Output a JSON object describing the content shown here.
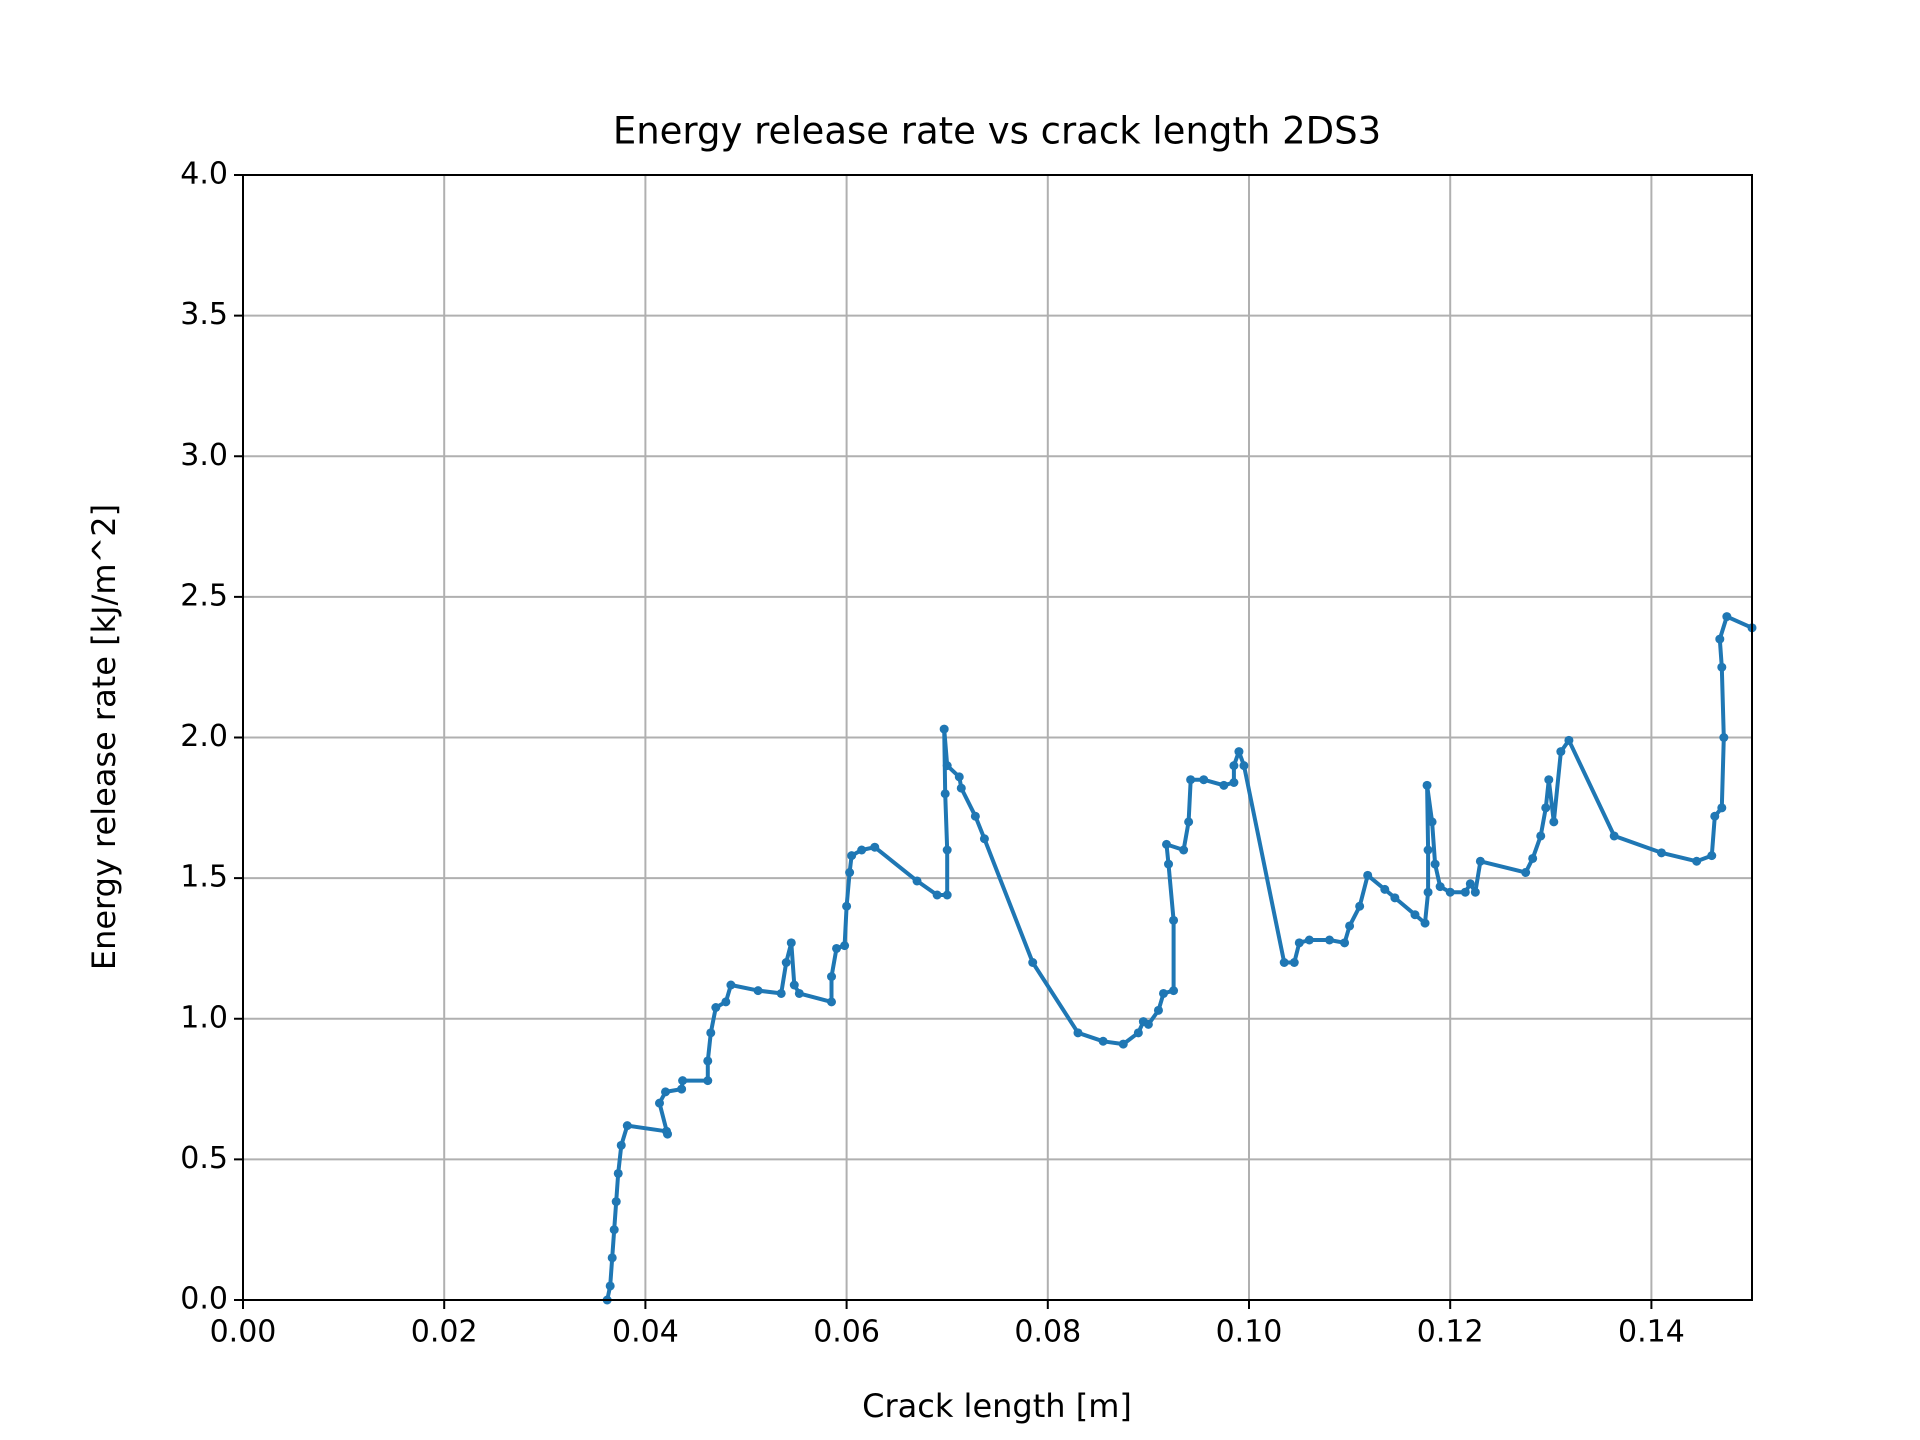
{
  "chart_data": {
    "type": "line",
    "title": "Energy release rate vs crack length 2DS3",
    "x_label": "Crack length [m]",
    "y_label": "Energy release rate [kJ/m^2]",
    "color": "#1f77b4",
    "grid": true,
    "xlim": [
      0,
      0.15
    ],
    "ylim": [
      0,
      4
    ],
    "xticks": [
      {
        "value": 0,
        "label": "0.00"
      },
      {
        "value": 0.02,
        "label": "0.02"
      },
      {
        "value": 0.04,
        "label": "0.04"
      },
      {
        "value": 0.06,
        "label": "0.06"
      },
      {
        "value": 0.08,
        "label": "0.08"
      },
      {
        "value": 0.1,
        "label": "0.10"
      },
      {
        "value": 0.12,
        "label": "0.12"
      },
      {
        "value": 0.14,
        "label": "0.14"
      }
    ],
    "yticks": [
      {
        "value": 0,
        "label": "0.0"
      },
      {
        "value": 0.5,
        "label": "0.5"
      },
      {
        "value": 1,
        "label": "1.0"
      },
      {
        "value": 1.5,
        "label": "1.5"
      },
      {
        "value": 2,
        "label": "2.0"
      },
      {
        "value": 2.5,
        "label": "2.5"
      },
      {
        "value": 3,
        "label": "3.0"
      },
      {
        "value": 3.5,
        "label": "3.5"
      },
      {
        "value": 4,
        "label": "4.0"
      }
    ],
    "x": [
      0.0362,
      0.0365,
      0.0367,
      0.0369,
      0.0371,
      0.0373,
      0.0376,
      0.0382,
      0.0421,
      0.0422,
      0.0414,
      0.042,
      0.0436,
      0.0437,
      0.0462,
      0.0462,
      0.0465,
      0.047,
      0.048,
      0.0485,
      0.0512,
      0.0535,
      0.054,
      0.0545,
      0.0548,
      0.0553,
      0.0585,
      0.0585,
      0.059,
      0.0598,
      0.06,
      0.0603,
      0.0605,
      0.0615,
      0.0628,
      0.067,
      0.069,
      0.07,
      0.07,
      0.0698,
      0.0697,
      0.07,
      0.0712,
      0.0714,
      0.0728,
      0.0737,
      0.0785,
      0.083,
      0.0855,
      0.0875,
      0.089,
      0.0895,
      0.09,
      0.091,
      0.0915,
      0.0925,
      0.0925,
      0.092,
      0.0918,
      0.0935,
      0.094,
      0.0942,
      0.0955,
      0.0975,
      0.0985,
      0.0985,
      0.099,
      0.0995,
      0.1035,
      0.1045,
      0.105,
      0.106,
      0.108,
      0.1095,
      0.11,
      0.111,
      0.1118,
      0.1135,
      0.1145,
      0.1165,
      0.1175,
      0.1178,
      0.1178,
      0.1177,
      0.1182,
      0.1185,
      0.119,
      0.12,
      0.1215,
      0.122,
      0.1225,
      0.123,
      0.1275,
      0.1282,
      0.129,
      0.1295,
      0.1298,
      0.1303,
      0.131,
      0.1318,
      0.1363,
      0.141,
      0.1445,
      0.146,
      0.1463,
      0.147,
      0.1472,
      0.147,
      0.1468,
      0.1475,
      0.15
    ],
    "values": [
      0.0,
      0.05,
      0.15,
      0.25,
      0.35,
      0.45,
      0.55,
      0.62,
      0.6,
      0.59,
      0.7,
      0.74,
      0.75,
      0.78,
      0.78,
      0.85,
      0.95,
      1.04,
      1.06,
      1.12,
      1.1,
      1.09,
      1.2,
      1.27,
      1.12,
      1.09,
      1.06,
      1.15,
      1.25,
      1.26,
      1.4,
      1.52,
      1.58,
      1.6,
      1.61,
      1.49,
      1.44,
      1.44,
      1.6,
      1.8,
      2.03,
      1.9,
      1.86,
      1.82,
      1.72,
      1.64,
      1.2,
      0.95,
      0.92,
      0.91,
      0.95,
      0.99,
      0.98,
      1.03,
      1.09,
      1.1,
      1.35,
      1.55,
      1.62,
      1.6,
      1.7,
      1.85,
      1.85,
      1.83,
      1.84,
      1.9,
      1.95,
      1.9,
      1.2,
      1.2,
      1.27,
      1.28,
      1.28,
      1.27,
      1.33,
      1.4,
      1.51,
      1.46,
      1.43,
      1.37,
      1.34,
      1.45,
      1.6,
      1.83,
      1.7,
      1.55,
      1.47,
      1.45,
      1.45,
      1.48,
      1.45,
      1.56,
      1.52,
      1.57,
      1.65,
      1.75,
      1.85,
      1.7,
      1.95,
      1.99,
      1.65,
      1.59,
      1.56,
      1.58,
      1.72,
      1.75,
      2.0,
      2.25,
      2.35,
      2.43,
      2.39
    ]
  }
}
